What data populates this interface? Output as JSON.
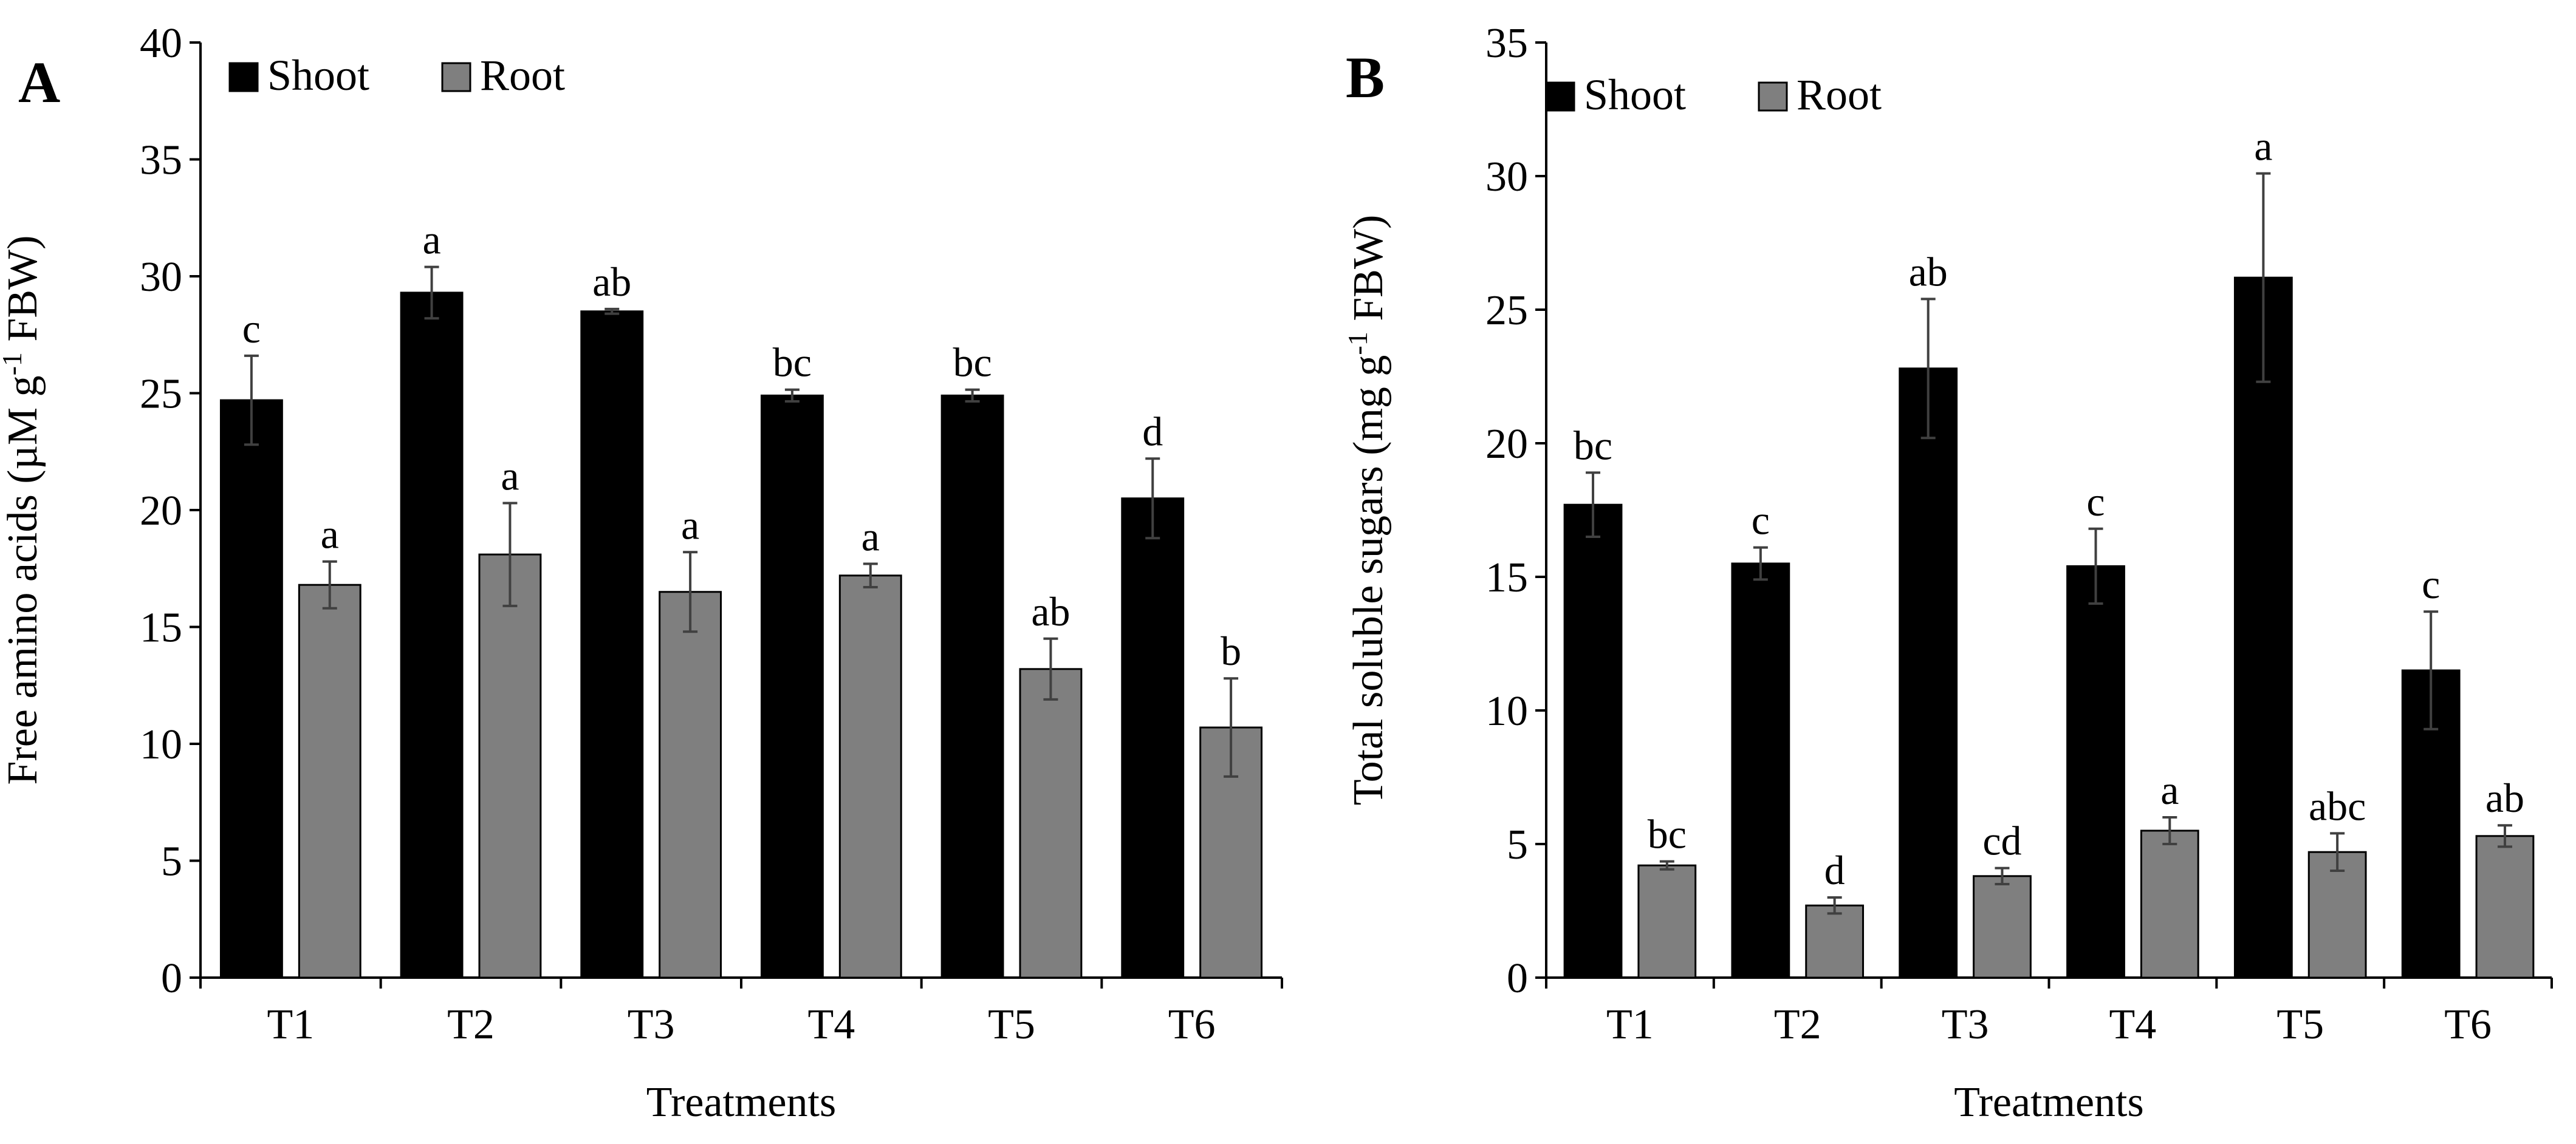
{
  "chart_data": [
    {
      "type": "bar",
      "panel_label": "A",
      "categories": [
        "T1",
        "T2",
        "T3",
        "T4",
        "T5",
        "T6"
      ],
      "series": [
        {
          "name": "Shoot",
          "color": "#000000",
          "values": [
            24.7,
            29.3,
            28.5,
            24.9,
            24.9,
            20.5
          ],
          "errors": [
            1.9,
            1.1,
            0.1,
            0.25,
            0.25,
            1.7
          ],
          "letters": [
            "c",
            "a",
            "ab",
            "bc",
            "bc",
            "d"
          ]
        },
        {
          "name": "Root",
          "color": "#7f7f7f",
          "values": [
            16.8,
            18.1,
            16.5,
            17.2,
            13.2,
            10.7
          ],
          "errors": [
            1.0,
            2.2,
            1.7,
            0.5,
            1.3,
            2.1
          ],
          "letters": [
            "a",
            "a",
            "a",
            "a",
            "ab",
            "b"
          ]
        }
      ],
      "xlabel": "Treatments",
      "ylabel_parts": [
        "Free amino acids (µM g",
        "-1",
        " FBW)"
      ],
      "ylim": [
        0,
        40
      ],
      "yticks": [
        0,
        5,
        10,
        15,
        20,
        25,
        30,
        35,
        40
      ],
      "legend_position": "top-left",
      "grid": false
    },
    {
      "type": "bar",
      "panel_label": "B",
      "categories": [
        "T1",
        "T2",
        "T3",
        "T4",
        "T5",
        "T6"
      ],
      "series": [
        {
          "name": "Shoot",
          "color": "#000000",
          "values": [
            17.7,
            15.5,
            22.8,
            15.4,
            26.2,
            11.5
          ],
          "errors": [
            1.2,
            0.6,
            2.6,
            1.4,
            3.9,
            2.2
          ],
          "letters": [
            "bc",
            "c",
            "ab",
            "c",
            "a",
            "c"
          ]
        },
        {
          "name": "Root",
          "color": "#7f7f7f",
          "values": [
            4.2,
            2.7,
            3.8,
            5.5,
            4.7,
            5.3
          ],
          "errors": [
            0.15,
            0.3,
            0.3,
            0.5,
            0.7,
            0.4
          ],
          "letters": [
            "bc",
            "d",
            "cd",
            "a",
            "abc",
            "ab"
          ]
        }
      ],
      "xlabel": "Treatments",
      "ylabel_parts": [
        "Total soluble sugars (mg g",
        "-1",
        " FBW)"
      ],
      "ylim": [
        0,
        35
      ],
      "yticks": [
        0,
        5,
        10,
        15,
        20,
        25,
        30,
        35
      ],
      "legend_position": "top-left",
      "grid": false
    }
  ]
}
